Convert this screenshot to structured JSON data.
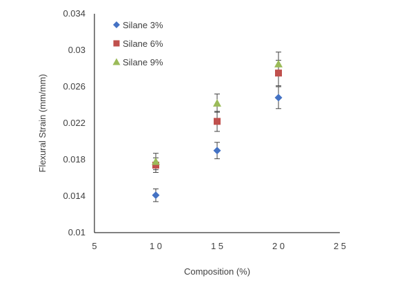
{
  "chart_data": {
    "type": "scatter",
    "title": "",
    "xlabel": "Composition (%)",
    "ylabel": "Flexural Strain (mm/mm)",
    "xlim": [
      5,
      25
    ],
    "ylim": [
      0.01,
      0.034
    ],
    "x_ticks": [
      "5",
      "10",
      "15",
      "20",
      "25"
    ],
    "y_ticks": [
      "0.01",
      "0.014",
      "0.018",
      "0.022",
      "0.026",
      "0.03",
      "0.034"
    ],
    "grid": false,
    "legend_position": "top-left",
    "series": [
      {
        "name": "Silane 3%",
        "marker": "diamond",
        "color": "#4472C4",
        "points": [
          {
            "x": 10,
            "y": 0.0141,
            "err": 0.0007
          },
          {
            "x": 15,
            "y": 0.019,
            "err": 0.0009
          },
          {
            "x": 20,
            "y": 0.0248,
            "err": 0.0012
          }
        ]
      },
      {
        "name": "Silane 6%",
        "marker": "square",
        "color": "#C0504D",
        "points": [
          {
            "x": 10,
            "y": 0.0174,
            "err": 0.0008
          },
          {
            "x": 15,
            "y": 0.0222,
            "err": 0.0011
          },
          {
            "x": 20,
            "y": 0.0275,
            "err": 0.0014
          }
        ]
      },
      {
        "name": "Silane 9%",
        "marker": "triangle",
        "color": "#9BBB59",
        "points": [
          {
            "x": 10,
            "y": 0.0178,
            "err": 0.0009
          },
          {
            "x": 15,
            "y": 0.0242,
            "err": 0.001
          },
          {
            "x": 20,
            "y": 0.0285,
            "err": 0.0013
          }
        ]
      }
    ]
  }
}
